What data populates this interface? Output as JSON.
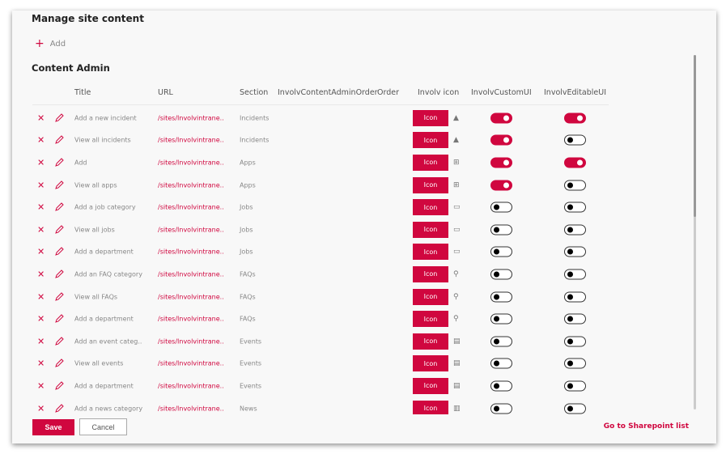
{
  "header": {
    "title": "Manage site content",
    "add_label": "Add",
    "section_title": "Content Admin"
  },
  "columns": [
    "Title",
    "URL",
    "Section",
    "InvolvContentAdminOrder",
    "Order",
    "Involv icon",
    "InvolvCustomUI",
    "InvolvEditableUI"
  ],
  "accent": "#d0073f",
  "rows": [
    {
      "title": "Add a new incident",
      "url": "/sites/Involvintrane..",
      "section": "Incidents",
      "icon": "warning-icon",
      "custom": true,
      "editable": true
    },
    {
      "title": "View all incidents",
      "url": "/sites/Involvintrane..",
      "section": "Incidents",
      "icon": "warning-icon",
      "custom": true,
      "editable": false
    },
    {
      "title": "Add",
      "url": "/sites/Involvintrane..",
      "section": "Apps",
      "icon": "apps-icon",
      "custom": true,
      "editable": true
    },
    {
      "title": "View all apps",
      "url": "/sites/Involvintrane..",
      "section": "Apps",
      "icon": "apps-icon",
      "custom": true,
      "editable": false
    },
    {
      "title": "Add a job category",
      "url": "/sites/Involvintrane..",
      "section": "Jobs",
      "icon": "briefcase-icon",
      "custom": false,
      "editable": false
    },
    {
      "title": "View all jobs",
      "url": "/sites/Involvintrane..",
      "section": "Jobs",
      "icon": "briefcase-icon",
      "custom": false,
      "editable": false
    },
    {
      "title": "Add a department",
      "url": "/sites/Involvintrane..",
      "section": "Jobs",
      "icon": "briefcase-icon",
      "custom": false,
      "editable": false
    },
    {
      "title": "Add an FAQ category",
      "url": "/sites/Involvintrane..",
      "section": "FAQs",
      "icon": "search-icon",
      "custom": false,
      "editable": false
    },
    {
      "title": "View all FAQs",
      "url": "/sites/Involvintrane..",
      "section": "FAQs",
      "icon": "search-icon",
      "custom": false,
      "editable": false
    },
    {
      "title": "Add a department",
      "url": "/sites/Involvintrane..",
      "section": "FAQs",
      "icon": "search-icon",
      "custom": false,
      "editable": false
    },
    {
      "title": "Add an event categ..",
      "url": "/sites/Involvintrane..",
      "section": "Events",
      "icon": "calendar-icon",
      "custom": false,
      "editable": false
    },
    {
      "title": "View all events",
      "url": "/sites/Involvintrane..",
      "section": "Events",
      "icon": "calendar-icon",
      "custom": false,
      "editable": false
    },
    {
      "title": "Add a department",
      "url": "/sites/Involvintrane..",
      "section": "Events",
      "icon": "calendar-icon",
      "custom": false,
      "editable": false
    },
    {
      "title": "Add a news category",
      "url": "/sites/Involvintrane..",
      "section": "News",
      "icon": "news-icon",
      "custom": false,
      "editable": false
    }
  ],
  "icon_button_label": "Icon",
  "footer": {
    "save": "Save",
    "cancel": "Cancel",
    "sharepoint_link": "Go to Sharepoint list"
  }
}
